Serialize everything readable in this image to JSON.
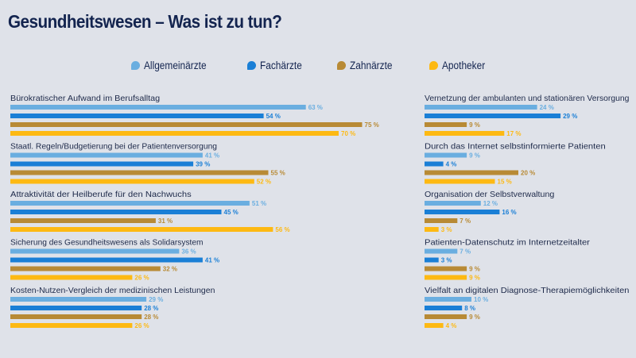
{
  "title": "Gesundheitswesen – Was ist zu tun?",
  "legend": [
    {
      "label": "Allgemeinärzte",
      "color": "#6aaee0",
      "icon": "speech-bubble-icon"
    },
    {
      "label": "Fachärzte",
      "color": "#1a7fd6",
      "icon": "speech-bubble-icon"
    },
    {
      "label": "Zahnärzte",
      "color": "#b88a35",
      "icon": "speech-bubble-icon"
    },
    {
      "label": "Apotheker",
      "color": "#fdb913",
      "icon": "speech-bubble-icon"
    }
  ],
  "chart_data": [
    {
      "type": "bar",
      "orientation": "horizontal",
      "title": "Gesundheitswesen – Was ist zu tun?",
      "unit": "%",
      "panel": "left",
      "categories": [
        "Bürokratischer Aufwand im Berufsalltag",
        "Staatl. Regeln/Budgetierung bei der Patientenversorgung",
        "Attraktivität der Heilberufe für den Nachwuchs",
        "Sicherung des Gesundheitswesens als Solidarsystem",
        "Kosten-Nutzen-Vergleich der medizinischen Leistungen"
      ],
      "series": [
        {
          "name": "Allgemeinärzte",
          "values": [
            63,
            41,
            51,
            36,
            29
          ]
        },
        {
          "name": "Fachärzte",
          "values": [
            54,
            39,
            45,
            41,
            28
          ]
        },
        {
          "name": "Zahnärzte",
          "values": [
            75,
            55,
            31,
            32,
            28
          ]
        },
        {
          "name": "Apotheker",
          "values": [
            70,
            52,
            56,
            26,
            26
          ]
        }
      ],
      "legend_position": "top-center",
      "grid": false
    },
    {
      "type": "bar",
      "orientation": "horizontal",
      "unit": "%",
      "panel": "right",
      "categories": [
        "Vernetzung der ambulanten und stationären Versorgung",
        "Durch das Internet selbstinformierte Patienten",
        "Organisation der Selbstverwaltung",
        "Patienten-Datenschutz im Internetzeitalter",
        "Vielfalt an digitalen Diagnose-Therapiemöglichkeiten"
      ],
      "series": [
        {
          "name": "Allgemeinärzte",
          "values": [
            24,
            9,
            12,
            7,
            10
          ]
        },
        {
          "name": "Fachärzte",
          "values": [
            29,
            4,
            16,
            3,
            8
          ]
        },
        {
          "name": "Zahnärzte",
          "values": [
            9,
            20,
            7,
            9,
            9
          ]
        },
        {
          "name": "Apotheker",
          "values": [
            17,
            15,
            3,
            9,
            4
          ]
        }
      ],
      "legend_position": "top-center",
      "grid": false
    }
  ]
}
